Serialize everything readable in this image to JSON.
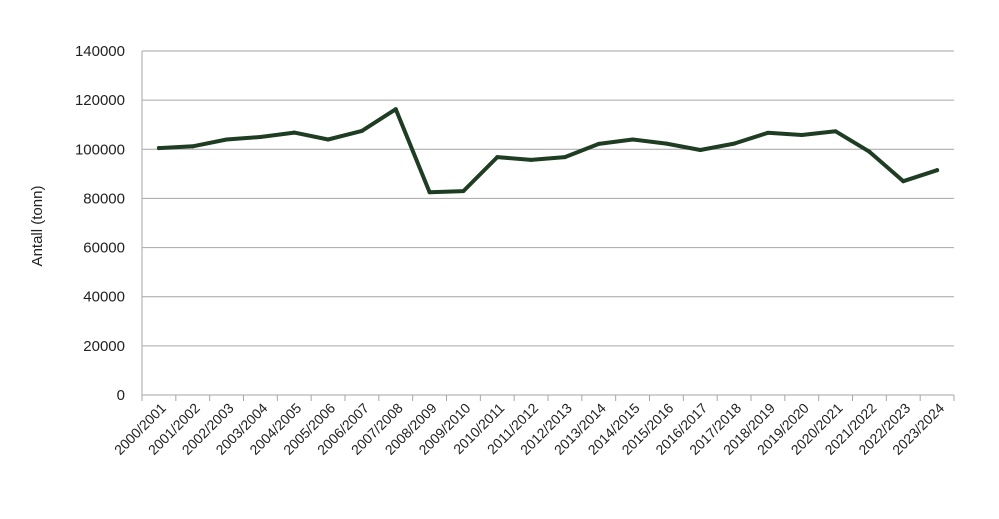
{
  "chart_data": {
    "type": "line",
    "title": "",
    "xlabel": "",
    "ylabel": "Antall (tonn)",
    "ylim": [
      0,
      140000
    ],
    "yticks": [
      "0",
      "20000",
      "40000",
      "60000",
      "80000",
      "100000",
      "120000",
      "140000"
    ],
    "grid": "horizontal",
    "legend": "none",
    "line_color": "#1f3d23",
    "grid_color": "#a6a6a6",
    "categories": [
      "2000/2001",
      "2001/2002",
      "2002/2003",
      "2003/2004",
      "2004/2005",
      "2005/2006",
      "2006/2007",
      "2007/2008",
      "2008/2009",
      "2009/2010",
      "2010/2011",
      "2011/2012",
      "2012/2013",
      "2013/2014",
      "2014/2015",
      "2015/2016",
      "2016/2017",
      "2017/2018",
      "2018/2019",
      "2019/2020",
      "2020/2021",
      "2021/2022",
      "2022/2023",
      "2023/2024"
    ],
    "series": [
      {
        "values": [
          100500,
          101200,
          104000,
          105000,
          106800,
          104000,
          107500,
          116300,
          82500,
          83000,
          96800,
          95700,
          96800,
          102200,
          104000,
          102300,
          99700,
          102300,
          106700,
          105800,
          107300,
          99000,
          87000,
          91500
        ]
      }
    ]
  }
}
